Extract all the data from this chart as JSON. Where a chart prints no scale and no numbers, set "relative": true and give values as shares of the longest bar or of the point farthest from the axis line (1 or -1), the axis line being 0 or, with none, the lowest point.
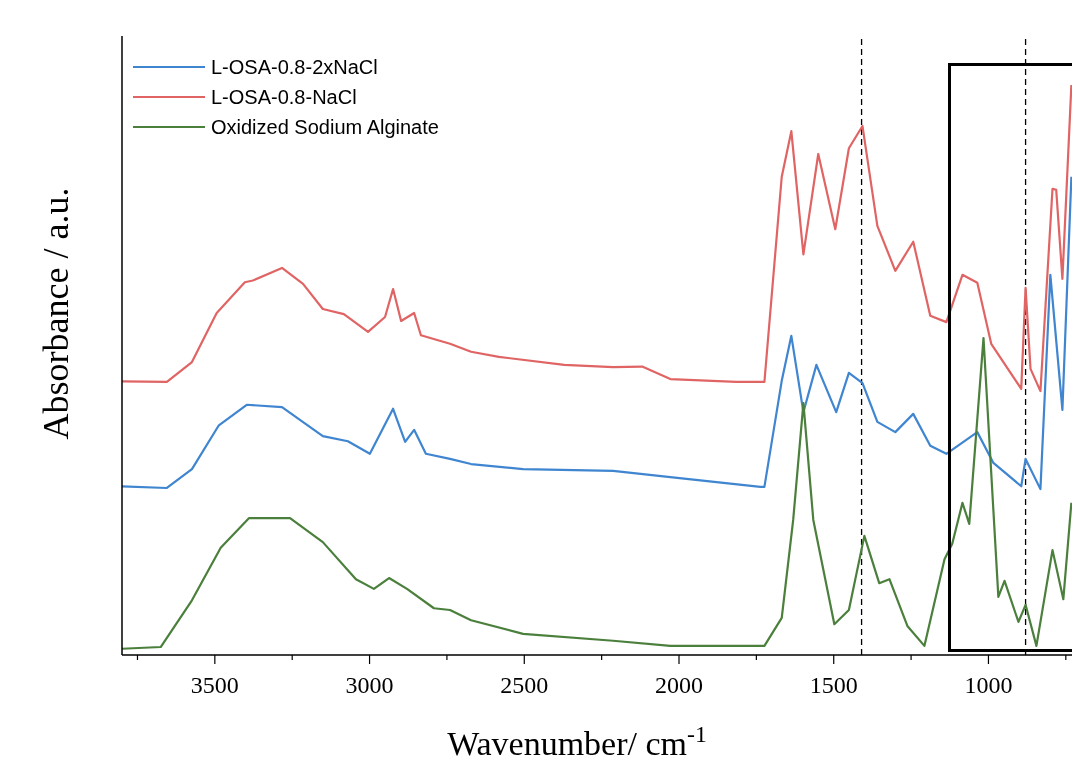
{
  "chart_data": {
    "type": "line",
    "xlabel": "Wavenumber/ cm$^{-1}$",
    "ylabel": "Absorbance / a.u.",
    "relative": true,
    "xlim": [
      3800,
      730
    ],
    "xticks": [
      {
        "value": 3750,
        "label": null
      },
      3500,
      {
        "value": 3250,
        "label": null
      },
      3000,
      {
        "value": 2750,
        "label": null
      },
      2500,
      {
        "value": 2250,
        "label": null
      },
      2000,
      {
        "value": 1750,
        "label": null
      },
      1500,
      {
        "value": 1250,
        "label": null
      },
      1000,
      {
        "value": 750,
        "label": null
      }
    ],
    "legend": "top left",
    "grid": false,
    "marker": "none",
    "line_style": "solid",
    "ref_lines": [
      {
        "axis": "x",
        "value": 1410,
        "label": null,
        "color": "#000000",
        "line_style": "dashed"
      },
      {
        "axis": "x",
        "value": 880,
        "label": null,
        "color": "#000000",
        "line_style": "dashed"
      }
    ],
    "series": [
      {
        "name": "L-OSA-0.8-2xNaCl",
        "color": "#3f85d0",
        "x": [
          3800,
          3655,
          3574,
          3487,
          3397,
          3283,
          3151,
          3070,
          2999,
          2924,
          2885,
          2856,
          2818,
          2740,
          2672,
          2504,
          2213,
          2028,
          1737,
          1724,
          1668,
          1637,
          1598,
          1556,
          1492,
          1451,
          1407,
          1359,
          1301,
          1243,
          1188,
          1136,
          1036,
          984,
          894,
          880,
          832,
          800,
          761,
          732
        ],
        "values": [
          0.296,
          0.293,
          0.326,
          0.403,
          0.439,
          0.435,
          0.384,
          0.375,
          0.353,
          0.432,
          0.374,
          0.395,
          0.353,
          0.344,
          0.335,
          0.326,
          0.323,
          0.312,
          0.295,
          0.295,
          0.481,
          0.56,
          0.426,
          0.509,
          0.426,
          0.495,
          0.477,
          0.409,
          0.391,
          0.423,
          0.367,
          0.353,
          0.391,
          0.337,
          0.296,
          0.344,
          0.291,
          0.667,
          0.43,
          0.839
        ]
      },
      {
        "name": "L-OSA-0.8-NaCl",
        "color": "#e06464",
        "x": [
          3800,
          3655,
          3574,
          3494,
          3403,
          3377,
          3283,
          3215,
          3151,
          3083,
          3005,
          2950,
          2924,
          2898,
          2856,
          2834,
          2740,
          2672,
          2582,
          2371,
          2213,
          2119,
          2028,
          1815,
          1724,
          1668,
          1637,
          1598,
          1550,
          1495,
          1451,
          1407,
          1359,
          1301,
          1243,
          1188,
          1136,
          1084,
          1036,
          991,
          894,
          880,
          864,
          832,
          793,
          781,
          761,
          732
        ],
        "values": [
          0.48,
          0.479,
          0.514,
          0.6,
          0.654,
          0.657,
          0.679,
          0.651,
          0.607,
          0.598,
          0.567,
          0.593,
          0.642,
          0.586,
          0.6,
          0.561,
          0.546,
          0.532,
          0.523,
          0.509,
          0.505,
          0.506,
          0.484,
          0.479,
          0.479,
          0.839,
          0.919,
          0.703,
          0.879,
          0.747,
          0.889,
          0.928,
          0.753,
          0.674,
          0.725,
          0.595,
          0.584,
          0.667,
          0.653,
          0.546,
          0.467,
          0.644,
          0.502,
          0.463,
          0.818,
          0.816,
          0.66,
          1
        ]
      },
      {
        "name": "Oxidized Sodium Alginate",
        "color": "#4b7f3c",
        "x": [
          3800,
          3675,
          3574,
          3481,
          3390,
          3257,
          3151,
          3044,
          2986,
          2937,
          2879,
          2792,
          2740,
          2672,
          2504,
          2213,
          2028,
          1737,
          1724,
          1668,
          1631,
          1598,
          1566,
          1498,
          1451,
          1401,
          1353,
          1320,
          1262,
          1207,
          1142,
          1117,
          1084,
          1062,
          1016,
          968,
          948,
          903,
          880,
          845,
          793,
          758,
          732
        ],
        "values": [
          0.011,
          0.014,
          0.096,
          0.188,
          0.24,
          0.24,
          0.198,
          0.133,
          0.116,
          0.135,
          0.116,
          0.082,
          0.079,
          0.061,
          0.037,
          0.025,
          0.016,
          0.016,
          0.016,
          0.065,
          0.237,
          0.442,
          0.237,
          0.054,
          0.079,
          0.209,
          0.126,
          0.133,
          0.051,
          0.016,
          0.168,
          0.195,
          0.267,
          0.23,
          0.556,
          0.102,
          0.13,
          0.058,
          0.088,
          0.016,
          0.184,
          0.098,
          0.267
        ]
      }
    ]
  }
}
